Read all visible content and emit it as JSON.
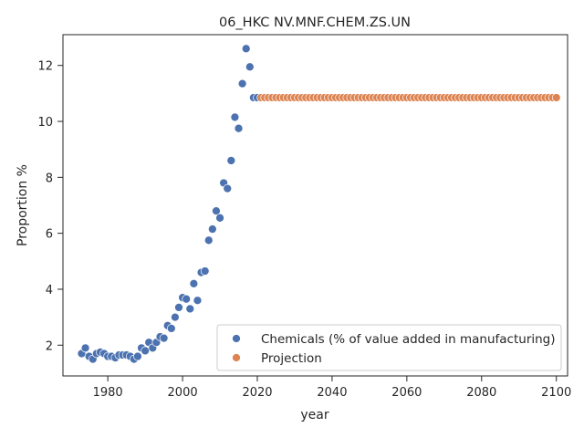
{
  "chart_data": {
    "type": "scatter",
    "title": "06_HKC NV.MNF.CHEM.ZS.UN",
    "xlabel": "year",
    "ylabel": "Proportion %",
    "xlim": [
      1968,
      2103
    ],
    "ylim": [
      0.9,
      13.1
    ],
    "xticks": [
      1980,
      2000,
      2020,
      2040,
      2060,
      2080,
      2100
    ],
    "yticks": [
      2,
      4,
      6,
      8,
      10,
      12
    ],
    "grid": false,
    "legend_position": "lower right",
    "series": [
      {
        "name": "Chemicals (% of value added in manufacturing)",
        "color": "#4c72b0",
        "points": [
          [
            1973,
            1.7
          ],
          [
            1974,
            1.9
          ],
          [
            1975,
            1.6
          ],
          [
            1976,
            1.5
          ],
          [
            1977,
            1.7
          ],
          [
            1978,
            1.75
          ],
          [
            1979,
            1.7
          ],
          [
            1980,
            1.6
          ],
          [
            1981,
            1.6
          ],
          [
            1982,
            1.55
          ],
          [
            1983,
            1.65
          ],
          [
            1984,
            1.65
          ],
          [
            1985,
            1.65
          ],
          [
            1986,
            1.6
          ],
          [
            1987,
            1.5
          ],
          [
            1988,
            1.6
          ],
          [
            1989,
            1.9
          ],
          [
            1990,
            1.8
          ],
          [
            1991,
            2.1
          ],
          [
            1992,
            1.9
          ],
          [
            1993,
            2.1
          ],
          [
            1994,
            2.3
          ],
          [
            1995,
            2.25
          ],
          [
            1996,
            2.7
          ],
          [
            1997,
            2.6
          ],
          [
            1998,
            3.0
          ],
          [
            1999,
            3.35
          ],
          [
            2000,
            3.7
          ],
          [
            2001,
            3.65
          ],
          [
            2002,
            3.3
          ],
          [
            2003,
            4.2
          ],
          [
            2004,
            3.6
          ],
          [
            2005,
            4.6
          ],
          [
            2006,
            4.65
          ],
          [
            2007,
            5.75
          ],
          [
            2008,
            6.15
          ],
          [
            2009,
            6.8
          ],
          [
            2010,
            6.55
          ],
          [
            2011,
            7.8
          ],
          [
            2012,
            7.6
          ],
          [
            2013,
            8.6
          ],
          [
            2014,
            10.15
          ],
          [
            2015,
            9.75
          ],
          [
            2016,
            11.35
          ],
          [
            2017,
            12.6
          ],
          [
            2018,
            11.95
          ],
          [
            2019,
            10.85
          ],
          [
            2020,
            10.85
          ]
        ]
      },
      {
        "name": "Projection",
        "color": "#dd8452",
        "x_start": 2021,
        "x_end": 2100,
        "value": 10.85
      }
    ]
  }
}
